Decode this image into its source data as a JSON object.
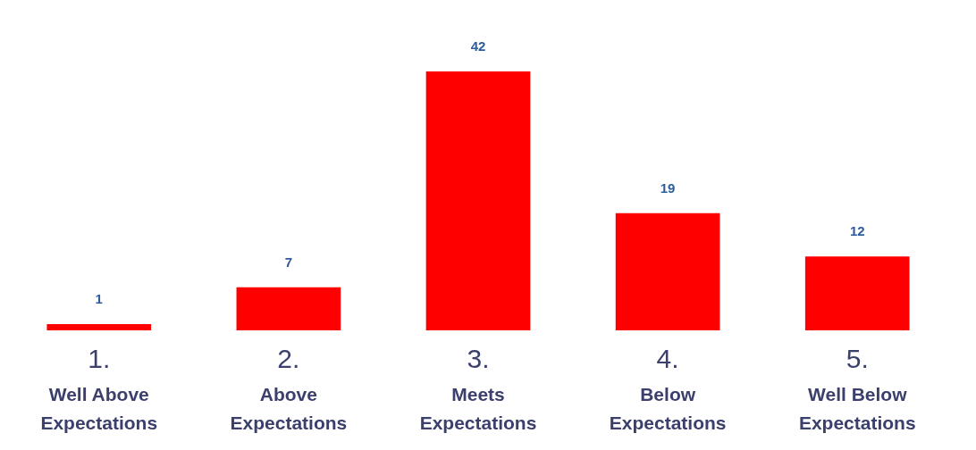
{
  "chart_data": {
    "type": "bar",
    "categories": [
      "1. Well Above Expectations",
      "2. Above Expectations",
      "3. Meets Expectations",
      "4. Below Expectations",
      "5. Well Below Expectations"
    ],
    "values": [
      1,
      7,
      42,
      19,
      12
    ],
    "color": "#ff0000",
    "data_labels": true
  }
}
